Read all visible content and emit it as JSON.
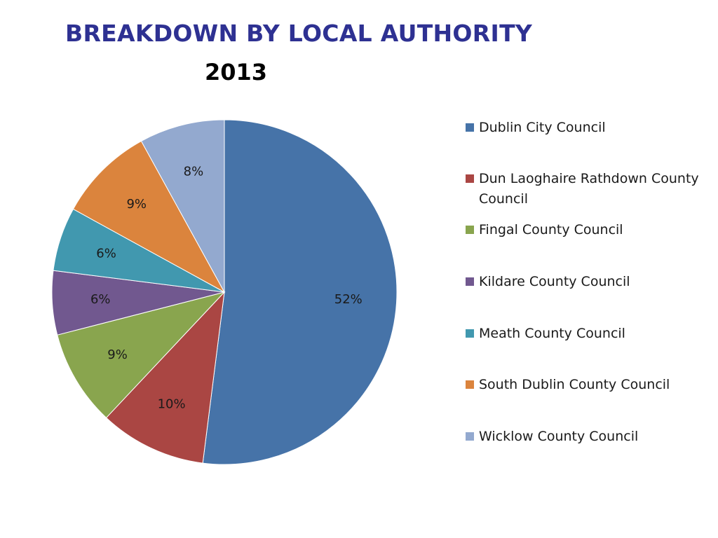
{
  "slide": {
    "title": "BREAKDOWN BY LOCAL AUTHORITY"
  },
  "colors": {
    "title": "#2e3192"
  },
  "chart_data": {
    "type": "pie",
    "title": "2013",
    "categories": [
      "Dublin City Council",
      "Dun Laoghaire Rathdown County Council",
      "Fingal County Council",
      "Kildare County Council",
      "Meath County Council",
      "South Dublin County Council",
      "Wicklow County Council"
    ],
    "values": [
      52,
      10,
      9,
      6,
      6,
      9,
      8
    ],
    "labels": [
      "52%",
      "10%",
      "9%",
      "6%",
      "6%",
      "9%",
      "8%"
    ],
    "colors": [
      "#4673a8",
      "#aa4643",
      "#89a54e",
      "#71588f",
      "#4198af",
      "#db843d",
      "#93a9cf"
    ],
    "start_angle": "12 o'clock",
    "direction": "clockwise",
    "legend_position": "right"
  }
}
